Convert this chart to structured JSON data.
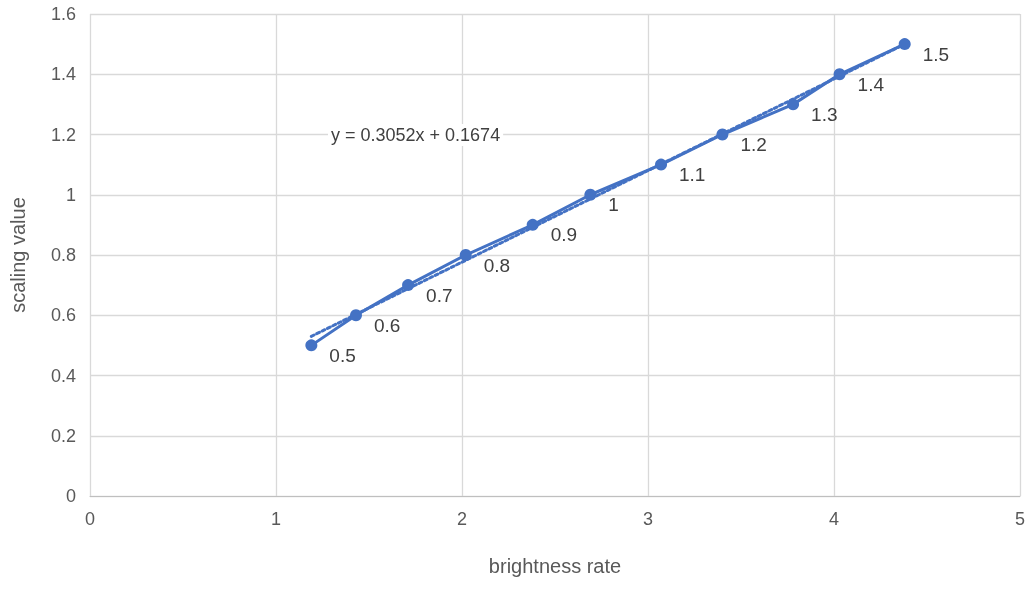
{
  "chart_data": {
    "type": "line",
    "xlabel": "brightness rate",
    "ylabel": "scaling value",
    "annotations": [
      "y = 0.3052x + 0.1674"
    ],
    "series": [
      {
        "color": "#4472c4",
        "x": [
          1.19,
          1.43,
          1.71,
          2.02,
          2.38,
          2.69,
          3.07,
          3.4,
          3.78,
          4.03,
          4.38
        ],
        "values": [
          0.5,
          0.6,
          0.7,
          0.8,
          0.9,
          1,
          1.1,
          1.2,
          1.3,
          1.4,
          1.5
        ],
        "marker": "circle",
        "line_style": "solid",
        "data_labels": true
      },
      {
        "color": "#4472c4",
        "x": [
          1.19,
          4.38
        ],
        "values": [
          0.53,
          1.5
        ],
        "marker": "none",
        "line_style": "dotted"
      }
    ],
    "xlim": [
      0,
      5
    ],
    "xticks": [
      0,
      1,
      2,
      3,
      4,
      5
    ],
    "ylim": [
      0,
      1.6
    ],
    "yticks": [
      0,
      0.2,
      0.4,
      0.6,
      0.8,
      1,
      1.2,
      1.4,
      1.6
    ],
    "grid": true,
    "legend": false
  }
}
